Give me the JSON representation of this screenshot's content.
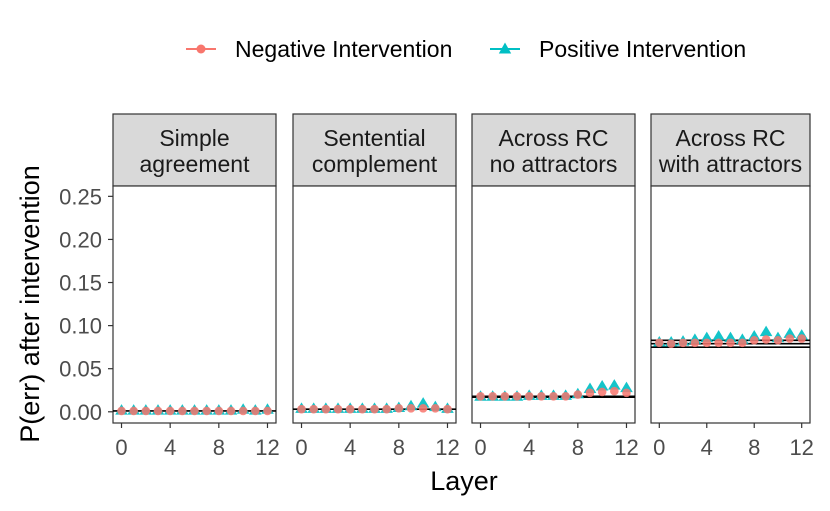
{
  "chart_data": {
    "type": "scatter",
    "xlabel": "Layer",
    "ylabel": "P(err) after intervention",
    "x_ticks": [
      "0",
      "4",
      "8",
      "12"
    ],
    "y_ticks": [
      "0.00",
      "0.05",
      "0.10",
      "0.15",
      "0.20",
      "0.25"
    ],
    "xlim": [
      -0.7,
      12.7
    ],
    "ylim": [
      -0.013,
      0.262
    ],
    "legend": {
      "position": "top",
      "entries": [
        {
          "name": "Negative Intervention",
          "color": "#F8766D",
          "shape": "circle"
        },
        {
          "name": "Positive Intervention",
          "color": "#00BFC4",
          "shape": "triangle"
        }
      ]
    },
    "panels": [
      {
        "title": [
          "Simple",
          "agreement"
        ],
        "baseline": [
          0.001
        ],
        "x": [
          0,
          1,
          2,
          3,
          4,
          5,
          6,
          7,
          8,
          9,
          10,
          11,
          12
        ],
        "series": [
          {
            "name": "Negative Intervention",
            "values": [
              0.001,
              0.001,
              0.001,
              0.001,
              0.001,
              0.001,
              0.001,
              0.001,
              0.001,
              0.001,
              0.001,
              0.001,
              0.001
            ]
          },
          {
            "name": "Positive Intervention",
            "values": [
              0.002,
              0.002,
              0.002,
              0.002,
              0.002,
              0.002,
              0.002,
              0.002,
              0.002,
              0.002,
              0.003,
              0.002,
              0.003
            ]
          }
        ]
      },
      {
        "title": [
          "Sentential",
          "complement"
        ],
        "baseline": [
          0.003
        ],
        "x": [
          0,
          1,
          2,
          3,
          4,
          5,
          6,
          7,
          8,
          9,
          10,
          11,
          12
        ],
        "series": [
          {
            "name": "Negative Intervention",
            "values": [
              0.003,
              0.003,
              0.003,
              0.003,
              0.003,
              0.003,
              0.003,
              0.003,
              0.004,
              0.004,
              0.004,
              0.004,
              0.003
            ]
          },
          {
            "name": "Positive Intervention",
            "values": [
              0.004,
              0.004,
              0.004,
              0.004,
              0.004,
              0.004,
              0.004,
              0.004,
              0.005,
              0.007,
              0.01,
              0.006,
              0.004
            ]
          }
        ]
      },
      {
        "title": [
          "Across RC",
          "no attractors"
        ],
        "baseline": [
          0.017,
          0.018
        ],
        "x": [
          0,
          1,
          2,
          3,
          4,
          5,
          6,
          7,
          8,
          9,
          10,
          11,
          12
        ],
        "series": [
          {
            "name": "Negative Intervention",
            "values": [
              0.018,
              0.018,
              0.018,
              0.018,
              0.018,
              0.018,
              0.018,
              0.018,
              0.02,
              0.022,
              0.023,
              0.024,
              0.022
            ]
          },
          {
            "name": "Positive Intervention",
            "values": [
              0.018,
              0.018,
              0.018,
              0.018,
              0.019,
              0.019,
              0.019,
              0.019,
              0.021,
              0.027,
              0.03,
              0.031,
              0.028
            ]
          }
        ]
      },
      {
        "title": [
          "Across RC",
          "with attractors"
        ],
        "baseline": [
          0.075,
          0.079,
          0.083
        ],
        "x": [
          0,
          1,
          2,
          3,
          4,
          5,
          6,
          7,
          8,
          9,
          10,
          11,
          12
        ],
        "series": [
          {
            "name": "Negative Intervention",
            "values": [
              0.08,
              0.079,
              0.08,
              0.08,
              0.08,
              0.08,
              0.08,
              0.08,
              0.083,
              0.084,
              0.083,
              0.085,
              0.085
            ]
          },
          {
            "name": "Positive Intervention",
            "values": [
              0.081,
              0.081,
              0.082,
              0.084,
              0.086,
              0.088,
              0.086,
              0.084,
              0.088,
              0.093,
              0.086,
              0.091,
              0.089
            ]
          }
        ]
      }
    ]
  }
}
